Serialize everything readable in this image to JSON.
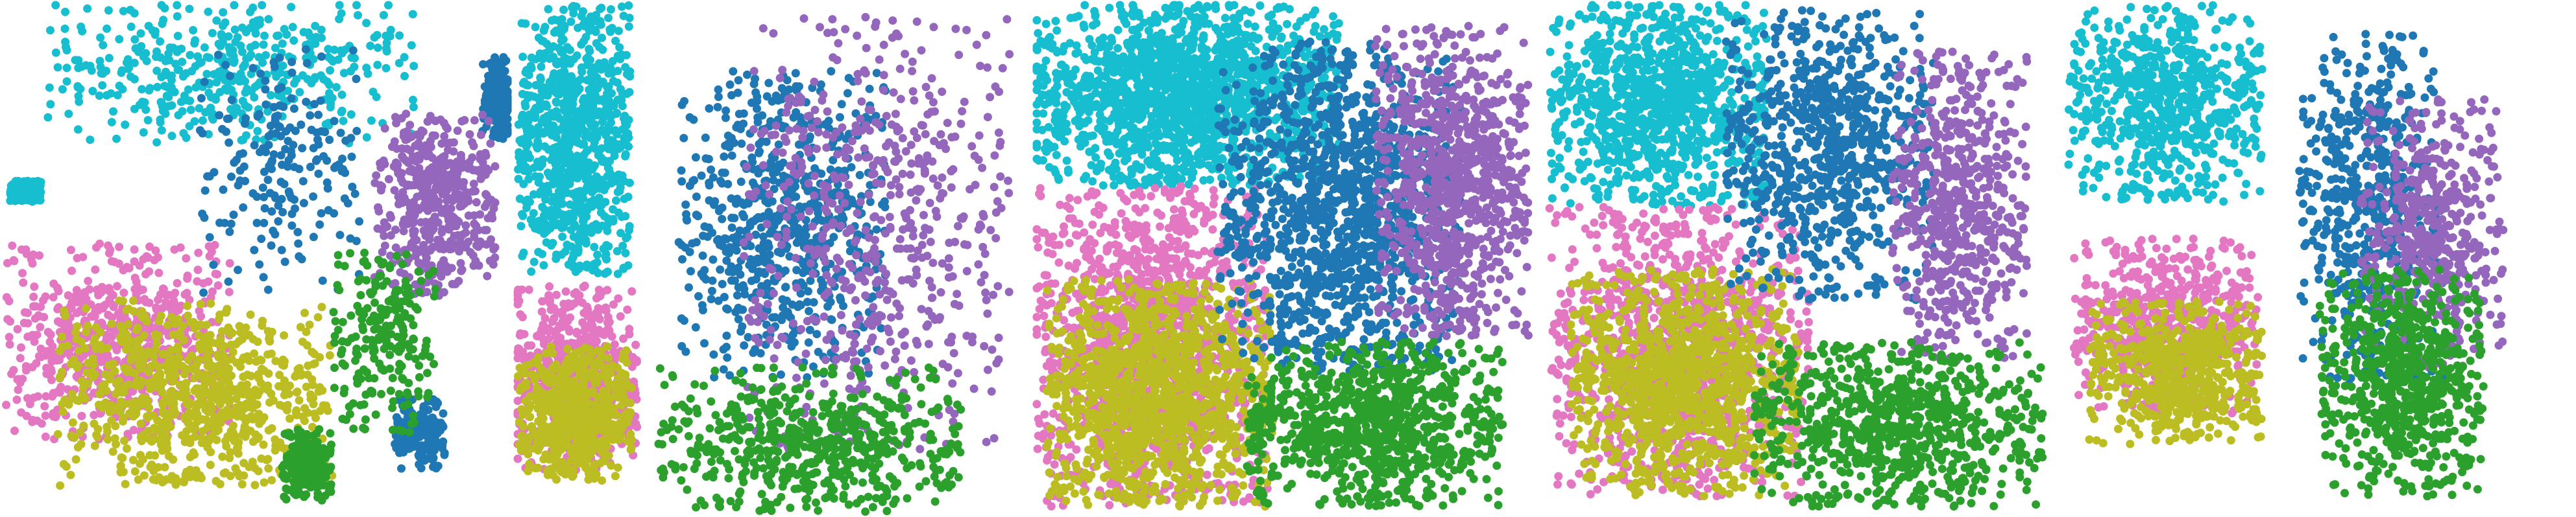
{
  "figure": {
    "background": "#ffffff"
  },
  "chart_data": [
    {
      "type": "scatter",
      "panel": 1,
      "title": "",
      "xlabel": "",
      "ylabel": "",
      "axes_visible": false,
      "grid": false,
      "legend": "none",
      "series": [
        {
          "color": "#17becf",
          "count": 900,
          "regions": [
            {
              "cx": 0.45,
              "cy": 0.14,
              "rx": 0.36,
              "ry": 0.14
            },
            {
              "cx": 0.05,
              "cy": 0.37,
              "rx": 0.03,
              "ry": 0.02
            }
          ]
        },
        {
          "color": "#e377c2",
          "count": 700,
          "regions": [
            {
              "cx": 0.23,
              "cy": 0.66,
              "rx": 0.22,
              "ry": 0.19
            }
          ]
        },
        {
          "color": "#bcbd22",
          "count": 800,
          "regions": [
            {
              "cx": 0.38,
              "cy": 0.76,
              "rx": 0.27,
              "ry": 0.18
            }
          ]
        },
        {
          "color": "#1f77b4",
          "count": 600,
          "regions": [
            {
              "cx": 0.55,
              "cy": 0.33,
              "rx": 0.16,
              "ry": 0.24
            },
            {
              "cx": 0.82,
              "cy": 0.84,
              "rx": 0.05,
              "ry": 0.07
            },
            {
              "cx": 0.97,
              "cy": 0.19,
              "rx": 0.03,
              "ry": 0.08
            }
          ]
        },
        {
          "color": "#9467bd",
          "count": 500,
          "regions": [
            {
              "cx": 0.85,
              "cy": 0.4,
              "rx": 0.12,
              "ry": 0.18
            }
          ]
        },
        {
          "color": "#2ca02c",
          "count": 450,
          "regions": [
            {
              "cx": 0.75,
              "cy": 0.66,
              "rx": 0.1,
              "ry": 0.18
            },
            {
              "cx": 0.6,
              "cy": 0.9,
              "rx": 0.05,
              "ry": 0.07
            }
          ]
        }
      ]
    },
    {
      "type": "scatter",
      "panel": 2,
      "title": "",
      "xlabel": "",
      "ylabel": "",
      "axes_visible": false,
      "grid": false,
      "legend": "none",
      "series": [
        {
          "color": "#17becf",
          "count": 900,
          "regions": [
            {
              "cx": 0.12,
              "cy": 0.27,
              "rx": 0.11,
              "ry": 0.26
            }
          ]
        },
        {
          "color": "#e377c2",
          "count": 600,
          "regions": [
            {
              "cx": 0.12,
              "cy": 0.73,
              "rx": 0.12,
              "ry": 0.18
            }
          ]
        },
        {
          "color": "#bcbd22",
          "count": 600,
          "regions": [
            {
              "cx": 0.12,
              "cy": 0.8,
              "rx": 0.11,
              "ry": 0.13
            }
          ]
        },
        {
          "color": "#1f77b4",
          "count": 700,
          "regions": [
            {
              "cx": 0.52,
              "cy": 0.43,
              "rx": 0.2,
              "ry": 0.3
            }
          ]
        },
        {
          "color": "#9467bd",
          "count": 600,
          "regions": [
            {
              "cx": 0.7,
              "cy": 0.45,
              "rx": 0.26,
              "ry": 0.42
            }
          ]
        },
        {
          "color": "#2ca02c",
          "count": 600,
          "regions": [
            {
              "cx": 0.58,
              "cy": 0.85,
              "rx": 0.3,
              "ry": 0.14
            }
          ]
        }
      ]
    },
    {
      "type": "scatter",
      "panel": 3,
      "title": "",
      "xlabel": "",
      "ylabel": "",
      "axes_visible": false,
      "grid": false,
      "legend": "none",
      "series": [
        {
          "color": "#17becf",
          "count": 1600,
          "regions": [
            {
              "cx": 0.3,
              "cy": 0.18,
              "rx": 0.3,
              "ry": 0.18
            }
          ]
        },
        {
          "color": "#e377c2",
          "count": 1400,
          "regions": [
            {
              "cx": 0.23,
              "cy": 0.67,
              "rx": 0.23,
              "ry": 0.31
            }
          ]
        },
        {
          "color": "#bcbd22",
          "count": 1300,
          "regions": [
            {
              "cx": 0.25,
              "cy": 0.76,
              "rx": 0.22,
              "ry": 0.22
            }
          ]
        },
        {
          "color": "#1f77b4",
          "count": 1300,
          "regions": [
            {
              "cx": 0.6,
              "cy": 0.4,
              "rx": 0.24,
              "ry": 0.32
            }
          ]
        },
        {
          "color": "#9467bd",
          "count": 900,
          "regions": [
            {
              "cx": 0.82,
              "cy": 0.35,
              "rx": 0.15,
              "ry": 0.3
            }
          ]
        },
        {
          "color": "#2ca02c",
          "count": 900,
          "regions": [
            {
              "cx": 0.67,
              "cy": 0.82,
              "rx": 0.25,
              "ry": 0.16
            }
          ]
        }
      ]
    },
    {
      "type": "scatter",
      "panel": 4,
      "title": "",
      "xlabel": "",
      "ylabel": "",
      "axes_visible": false,
      "grid": false,
      "legend": "none",
      "series": [
        {
          "color": "#17becf",
          "count": 1000,
          "regions": [
            {
              "cx": 0.22,
              "cy": 0.2,
              "rx": 0.21,
              "ry": 0.2
            }
          ]
        },
        {
          "color": "#e377c2",
          "count": 1200,
          "regions": [
            {
              "cx": 0.26,
              "cy": 0.68,
              "rx": 0.25,
              "ry": 0.28
            }
          ]
        },
        {
          "color": "#bcbd22",
          "count": 1100,
          "regions": [
            {
              "cx": 0.27,
              "cy": 0.74,
              "rx": 0.22,
              "ry": 0.22
            }
          ]
        },
        {
          "color": "#1f77b4",
          "count": 800,
          "regions": [
            {
              "cx": 0.55,
              "cy": 0.3,
              "rx": 0.2,
              "ry": 0.28
            }
          ]
        },
        {
          "color": "#9467bd",
          "count": 600,
          "regions": [
            {
              "cx": 0.8,
              "cy": 0.4,
              "rx": 0.13,
              "ry": 0.3
            }
          ]
        },
        {
          "color": "#2ca02c",
          "count": 800,
          "regions": [
            {
              "cx": 0.68,
              "cy": 0.82,
              "rx": 0.28,
              "ry": 0.16
            }
          ]
        }
      ]
    },
    {
      "type": "scatter",
      "panel": 5,
      "title": "",
      "xlabel": "",
      "ylabel": "",
      "axes_visible": false,
      "grid": false,
      "legend": "none",
      "series": [
        {
          "color": "#17becf",
          "count": 700,
          "regions": [
            {
              "cx": 0.2,
              "cy": 0.2,
              "rx": 0.19,
              "ry": 0.19
            }
          ]
        },
        {
          "color": "#e377c2",
          "count": 600,
          "regions": [
            {
              "cx": 0.2,
              "cy": 0.63,
              "rx": 0.18,
              "ry": 0.17
            }
          ]
        },
        {
          "color": "#bcbd22",
          "count": 600,
          "regions": [
            {
              "cx": 0.22,
              "cy": 0.72,
              "rx": 0.17,
              "ry": 0.14
            }
          ]
        },
        {
          "color": "#1f77b4",
          "count": 600,
          "regions": [
            {
              "cx": 0.6,
              "cy": 0.4,
              "rx": 0.14,
              "ry": 0.35
            }
          ]
        },
        {
          "color": "#9467bd",
          "count": 500,
          "regions": [
            {
              "cx": 0.72,
              "cy": 0.45,
              "rx": 0.14,
              "ry": 0.26
            }
          ]
        },
        {
          "color": "#2ca02c",
          "count": 700,
          "regions": [
            {
              "cx": 0.66,
              "cy": 0.74,
              "rx": 0.16,
              "ry": 0.22
            }
          ]
        }
      ]
    }
  ]
}
